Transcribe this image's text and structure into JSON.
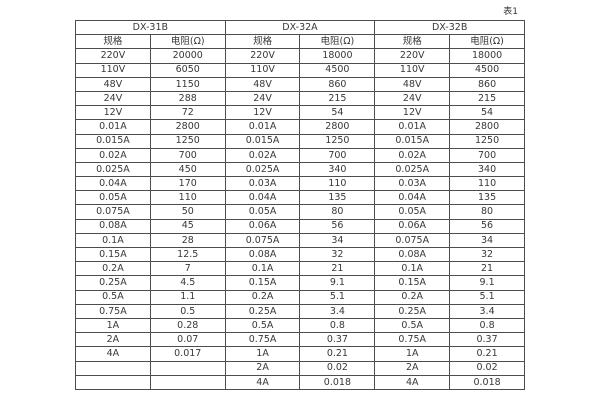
{
  "caption": "表1",
  "table": {
    "groups": [
      {
        "name": "DX-31B"
      },
      {
        "name": "DX-32A"
      },
      {
        "name": "DX-32B"
      }
    ],
    "col_headers": [
      "规格",
      "电阻(Ω)",
      "规格",
      "电阻(Ω)",
      "规格",
      "电阻(Ω)"
    ],
    "rows": [
      [
        "220V",
        "20000",
        "220V",
        "18000",
        "220V",
        "18000"
      ],
      [
        "110V",
        "6050",
        "110V",
        "4500",
        "110V",
        "4500"
      ],
      [
        "48V",
        "1150",
        "48V",
        "860",
        "48V",
        "860"
      ],
      [
        "24V",
        "288",
        "24V",
        "215",
        "24V",
        "215"
      ],
      [
        "12V",
        "72",
        "12V",
        "54",
        "12V",
        "54"
      ],
      [
        "0.01A",
        "2800",
        "0.01A",
        "2800",
        "0.01A",
        "2800"
      ],
      [
        "0.015A",
        "1250",
        "0.015A",
        "1250",
        "0.015A",
        "1250"
      ],
      [
        "0.02A",
        "700",
        "0.02A",
        "700",
        "0.02A",
        "700"
      ],
      [
        "0.025A",
        "450",
        "0.025A",
        "340",
        "0.025A",
        "340"
      ],
      [
        "0.04A",
        "170",
        "0.03A",
        "110",
        "0.03A",
        "110"
      ],
      [
        "0.05A",
        "110",
        "0.04A",
        "135",
        "0.04A",
        "135"
      ],
      [
        "0.075A",
        "50",
        "0.05A",
        "80",
        "0.05A",
        "80"
      ],
      [
        "0.08A",
        "45",
        "0.06A",
        "56",
        "0.06A",
        "56"
      ],
      [
        "0.1A",
        "28",
        "0.075A",
        "34",
        "0.075A",
        "34"
      ],
      [
        "0.15A",
        "12.5",
        "0.08A",
        "32",
        "0.08A",
        "32"
      ],
      [
        "0.2A",
        "7",
        "0.1A",
        "21",
        "0.1A",
        "21"
      ],
      [
        "0.25A",
        "4.5",
        "0.15A",
        "9.1",
        "0.15A",
        "9.1"
      ],
      [
        "0.5A",
        "1.1",
        "0.2A",
        "5.1",
        "0.2A",
        "5.1"
      ],
      [
        "0.75A",
        "0.5",
        "0.25A",
        "3.4",
        "0.25A",
        "3.4"
      ],
      [
        "1A",
        "0.28",
        "0.5A",
        "0.8",
        "0.5A",
        "0.8"
      ],
      [
        "2A",
        "0.07",
        "0.75A",
        "0.37",
        "0.75A",
        "0.37"
      ],
      [
        "4A",
        "0.017",
        "1A",
        "0.21",
        "1A",
        "0.21"
      ],
      [
        "",
        "",
        "2A",
        "0.02",
        "2A",
        "0.02"
      ],
      [
        "",
        "",
        "4A",
        "0.018",
        "4A",
        "0.018"
      ]
    ],
    "colors": {
      "border": "#4d4d4d",
      "text": "#383838",
      "background": "#ffffff"
    }
  }
}
